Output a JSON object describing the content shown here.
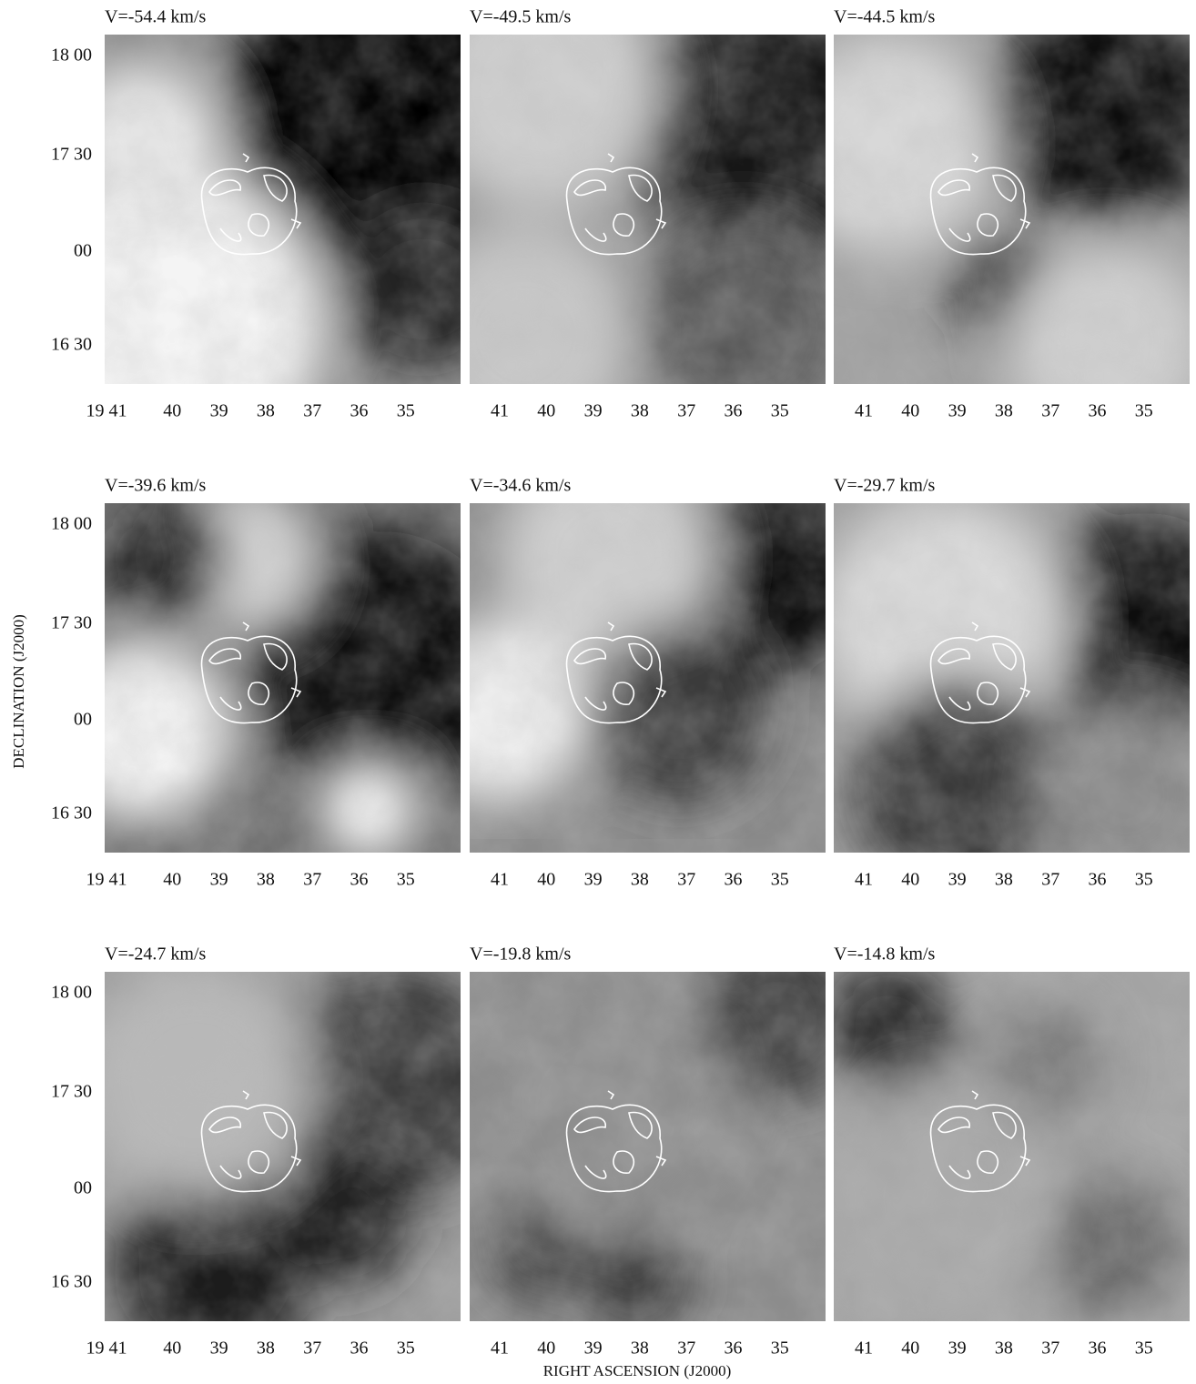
{
  "panels": [
    {
      "title": "V=-54.4  km/s"
    },
    {
      "title": "V=-49.5  km/s"
    },
    {
      "title": "V=-44.5  km/s"
    },
    {
      "title": "V=-39.6  km/s"
    },
    {
      "title": "V=-34.6  km/s"
    },
    {
      "title": "V=-29.7  km/s"
    },
    {
      "title": "V=-24.7  km/s"
    },
    {
      "title": "V=-19.8  km/s"
    },
    {
      "title": "V=-14.8  km/s"
    }
  ],
  "y_ticks": [
    "18 00",
    "17 30",
    "00",
    "16 30"
  ],
  "x_ticks_first": [
    "19 41",
    "40",
    "39",
    "38",
    "37",
    "36",
    "35"
  ],
  "x_ticks_other": [
    "41",
    "40",
    "39",
    "38",
    "37",
    "36",
    "35"
  ],
  "y_label": "DECLINATION  (J2000)",
  "x_label": "RIGHT  ASCENSION  (J2000)"
}
